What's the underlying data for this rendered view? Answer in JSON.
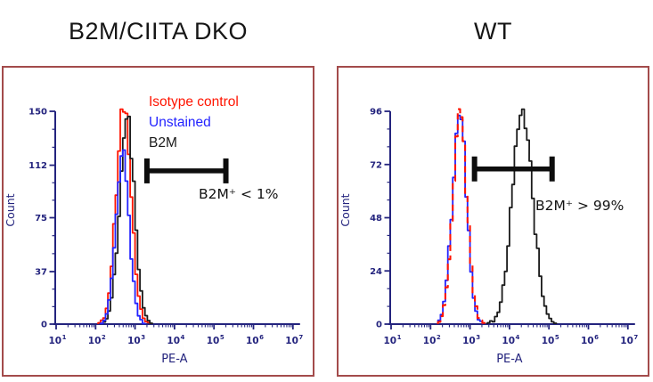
{
  "page": {
    "background": "#ffffff",
    "panel_border_color": "#a34b4b",
    "axis_color": "#24247e",
    "gate_color": "#0d0d0d",
    "text_color": "#161616"
  },
  "legend": {
    "items": [
      {
        "label": "Isotype control",
        "color": "#ff1400"
      },
      {
        "label": "Unstained",
        "color": "#2323ff"
      },
      {
        "label": "B2M",
        "color": "#1a1a1a"
      }
    ]
  },
  "chart_data": [
    {
      "type": "line",
      "title": "B2M/CIITA DKO",
      "xlabel": "PE-A",
      "ylabel": "Count",
      "x_scale": "log10",
      "x_tick_exponents": [
        1,
        2,
        3,
        4,
        5,
        6,
        7
      ],
      "x_range": [
        10,
        10000000
      ],
      "y_ticks": [
        0,
        37,
        75,
        112,
        150
      ],
      "ylim": [
        0,
        150
      ],
      "grid": false,
      "legend_position": "upper-right-inside",
      "series": [
        {
          "name": "Isotype control",
          "color": "#ff1400",
          "style": "solid",
          "peak_x": 480,
          "peak_count": 149,
          "sigma_log_decades": 0.19
        },
        {
          "name": "B2M",
          "color": "#1a1a1a",
          "style": "solid",
          "peak_x": 580,
          "peak_count": 143,
          "sigma_log_decades": 0.19
        },
        {
          "name": "Unstained",
          "color": "#2323ff",
          "style": "solid",
          "peak_x": 450,
          "peak_count": 116,
          "sigma_log_decades": 0.17
        }
      ],
      "gate": {
        "x_start": 2000,
        "x_end": 200000,
        "count_level": 108,
        "label": "B2M⁺ < 1%"
      }
    },
    {
      "type": "line",
      "title": "WT",
      "xlabel": "PE-A",
      "ylabel": "Count",
      "x_scale": "log10",
      "x_tick_exponents": [
        1,
        2,
        3,
        4,
        5,
        6,
        7
      ],
      "x_range": [
        10,
        10000000
      ],
      "y_ticks": [
        0,
        24,
        48,
        72,
        96
      ],
      "ylim": [
        0,
        96
      ],
      "grid": false,
      "legend_position": "none",
      "series": [
        {
          "name": "B2M",
          "color": "#1a1a1a",
          "style": "solid",
          "peak_x": 20000,
          "peak_count": 95,
          "sigma_log_decades": 0.26
        },
        {
          "name": "Unstained",
          "color": "#2323ff",
          "style": "solid",
          "peak_x": 500,
          "peak_count": 95,
          "sigma_log_decades": 0.18
        },
        {
          "name": "Isotype control",
          "color": "#ff1400",
          "style": "dashed",
          "peak_x": 520,
          "peak_count": 93,
          "sigma_log_decades": 0.18
        }
      ],
      "gate": {
        "x_start": 1300,
        "x_end": 120000,
        "count_level": 70,
        "label": "B2M⁺ > 99%"
      }
    }
  ]
}
